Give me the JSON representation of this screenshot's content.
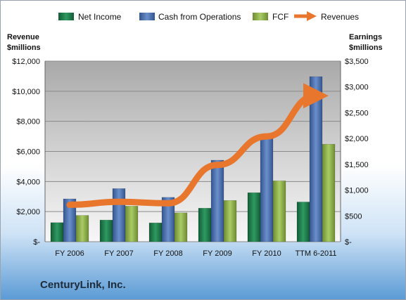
{
  "chart_data": {
    "type": "bar",
    "categories": [
      "FY 2006",
      "FY 2007",
      "FY 2008",
      "FY 2009",
      "FY 2010",
      "TTM 6-2011"
    ],
    "series": [
      {
        "name": "Net Income",
        "axis": "right",
        "values": [
          370,
          420,
          365,
          650,
          950,
          770
        ],
        "color": "#1e7a4a"
      },
      {
        "name": "Cash from Operations",
        "axis": "right",
        "values": [
          830,
          1030,
          860,
          1580,
          2050,
          3200
        ],
        "color": "#4a6fb0"
      },
      {
        "name": "FCF",
        "axis": "right",
        "values": [
          510,
          690,
          560,
          800,
          1180,
          1890
        ],
        "color": "#8fb04a"
      }
    ],
    "line_series": {
      "name": "Revenues",
      "type": "line",
      "axis": "left",
      "values": [
        2450,
        2650,
        2550,
        5100,
        7000,
        9700
      ],
      "color": "#e8762d"
    },
    "left_axis": {
      "label_line1": "Revenue",
      "label_line2": "$millions",
      "ylim": [
        0,
        12000
      ],
      "ticks": [
        0,
        2000,
        4000,
        6000,
        8000,
        10000,
        12000
      ],
      "tick_labels": [
        "$-",
        "$2,000",
        "$4,000",
        "$6,000",
        "$8,000",
        "$10,000",
        "$12,000"
      ]
    },
    "right_axis": {
      "label_line1": "Earnings",
      "label_line2": "$millions",
      "ylim": [
        0,
        3500
      ],
      "ticks": [
        0,
        500,
        1000,
        1500,
        2000,
        2500,
        3000,
        3500
      ],
      "tick_labels": [
        "$-",
        "$500",
        "$1,000",
        "$1,500",
        "$2,000",
        "$2,500",
        "$3,000",
        "$3,500"
      ]
    },
    "grid": true,
    "legend": "top"
  },
  "company": "CenturyLink, Inc."
}
